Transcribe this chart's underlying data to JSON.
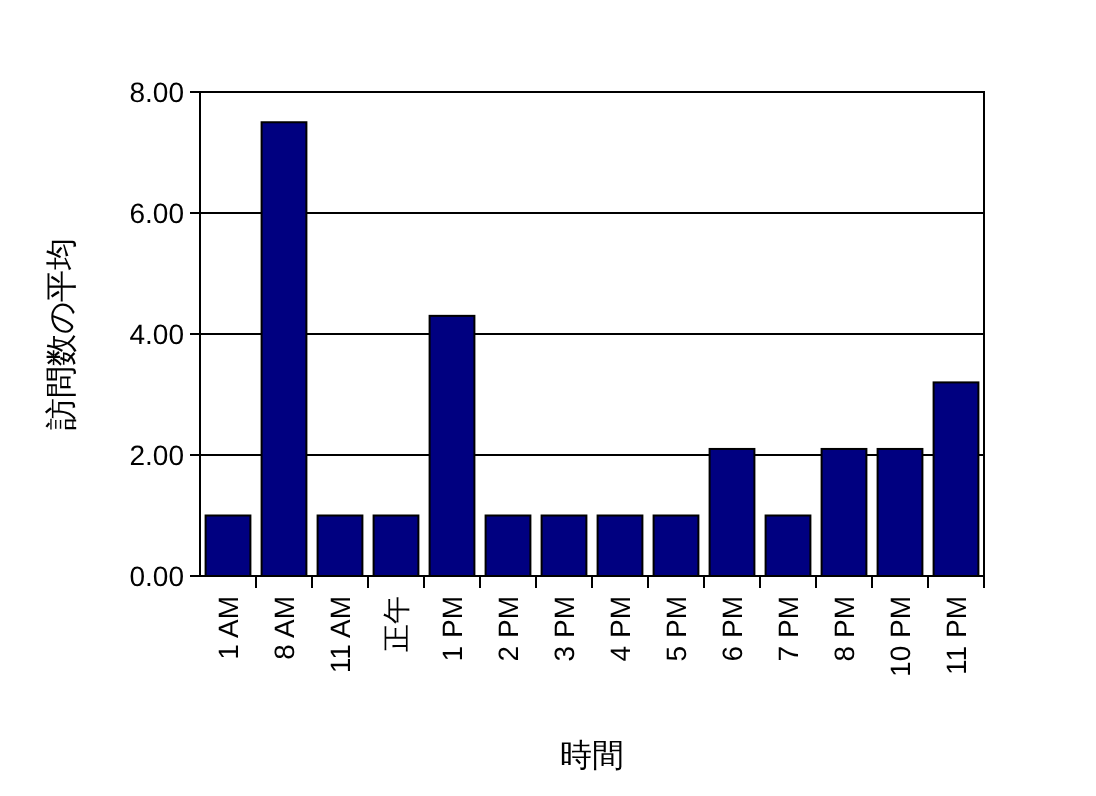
{
  "chart_data": {
    "type": "bar",
    "xlabel": "時間",
    "ylabel": "訪問数の平均",
    "categories": [
      "1 AM",
      "8 AM",
      "11 AM",
      "正午",
      "1 PM",
      "2 PM",
      "3 PM",
      "4 PM",
      "5 PM",
      "6 PM",
      "7 PM",
      "8 PM",
      "10 PM",
      "11 PM"
    ],
    "values": [
      1,
      7.5,
      1,
      1,
      4.3,
      1,
      1,
      1,
      1,
      2.1,
      1,
      2.1,
      2.1,
      3.2
    ],
    "color": "#000080",
    "ylim": [
      0,
      8
    ],
    "yticks": [
      {
        "value": 0,
        "label": "0.00"
      },
      {
        "value": 2,
        "label": "2.00"
      },
      {
        "value": 4,
        "label": "4.00"
      },
      {
        "value": 6,
        "label": "6.00"
      },
      {
        "value": 8,
        "label": "8.00"
      }
    ],
    "grid": "y"
  }
}
